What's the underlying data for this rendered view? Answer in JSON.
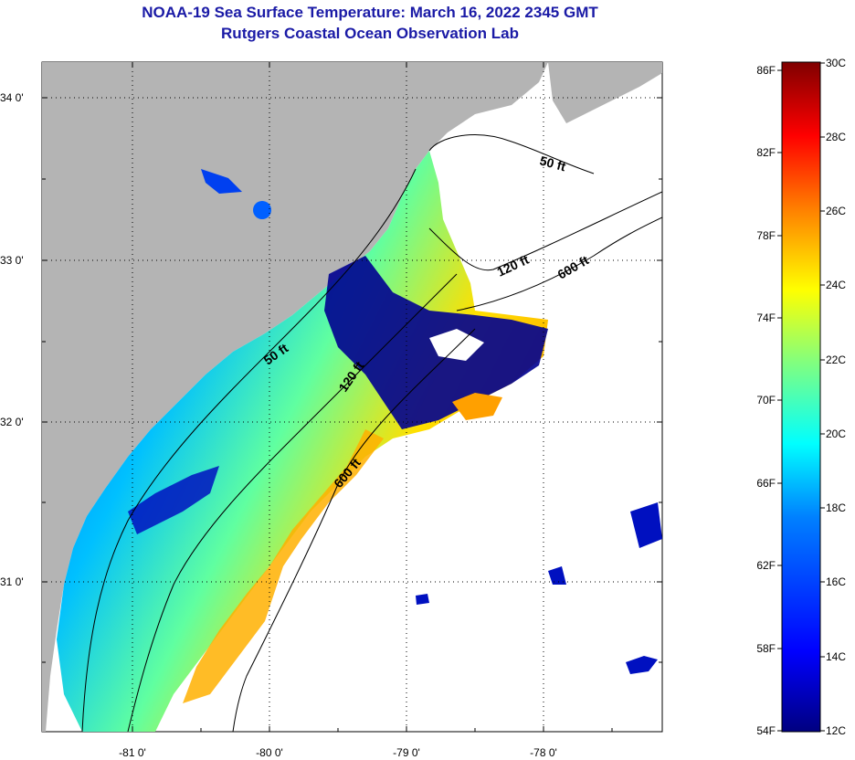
{
  "title": {
    "line1": "NOAA-19 Sea Surface Temperature:  March 16, 2022 2345 GMT",
    "line2": "Rutgers Coastal Ocean Observation Lab"
  },
  "map": {
    "lat_labels": [
      "34 0'",
      "33 0'",
      "32 0'",
      "31 0'"
    ],
    "lon_labels": [
      "-81 0'",
      "-80 0'",
      "-79 0'",
      "-78 0'"
    ],
    "contour_labels": [
      "50 ft",
      "120 ft",
      "600 ft",
      "50 ft",
      "120 ft",
      "600 ft"
    ]
  },
  "colorbar": {
    "f_labels": [
      "86F",
      "82F",
      "78F",
      "74F",
      "70F",
      "66F",
      "62F",
      "58F",
      "54F"
    ],
    "c_labels": [
      "30C",
      "28C",
      "26C",
      "24C",
      "22C",
      "20C",
      "18C",
      "16C",
      "14C",
      "12C"
    ],
    "colors": [
      "#800000",
      "#ff0000",
      "#ff8000",
      "#ffff00",
      "#80ff80",
      "#00ffff",
      "#0080ff",
      "#0000ff",
      "#000080"
    ]
  }
}
